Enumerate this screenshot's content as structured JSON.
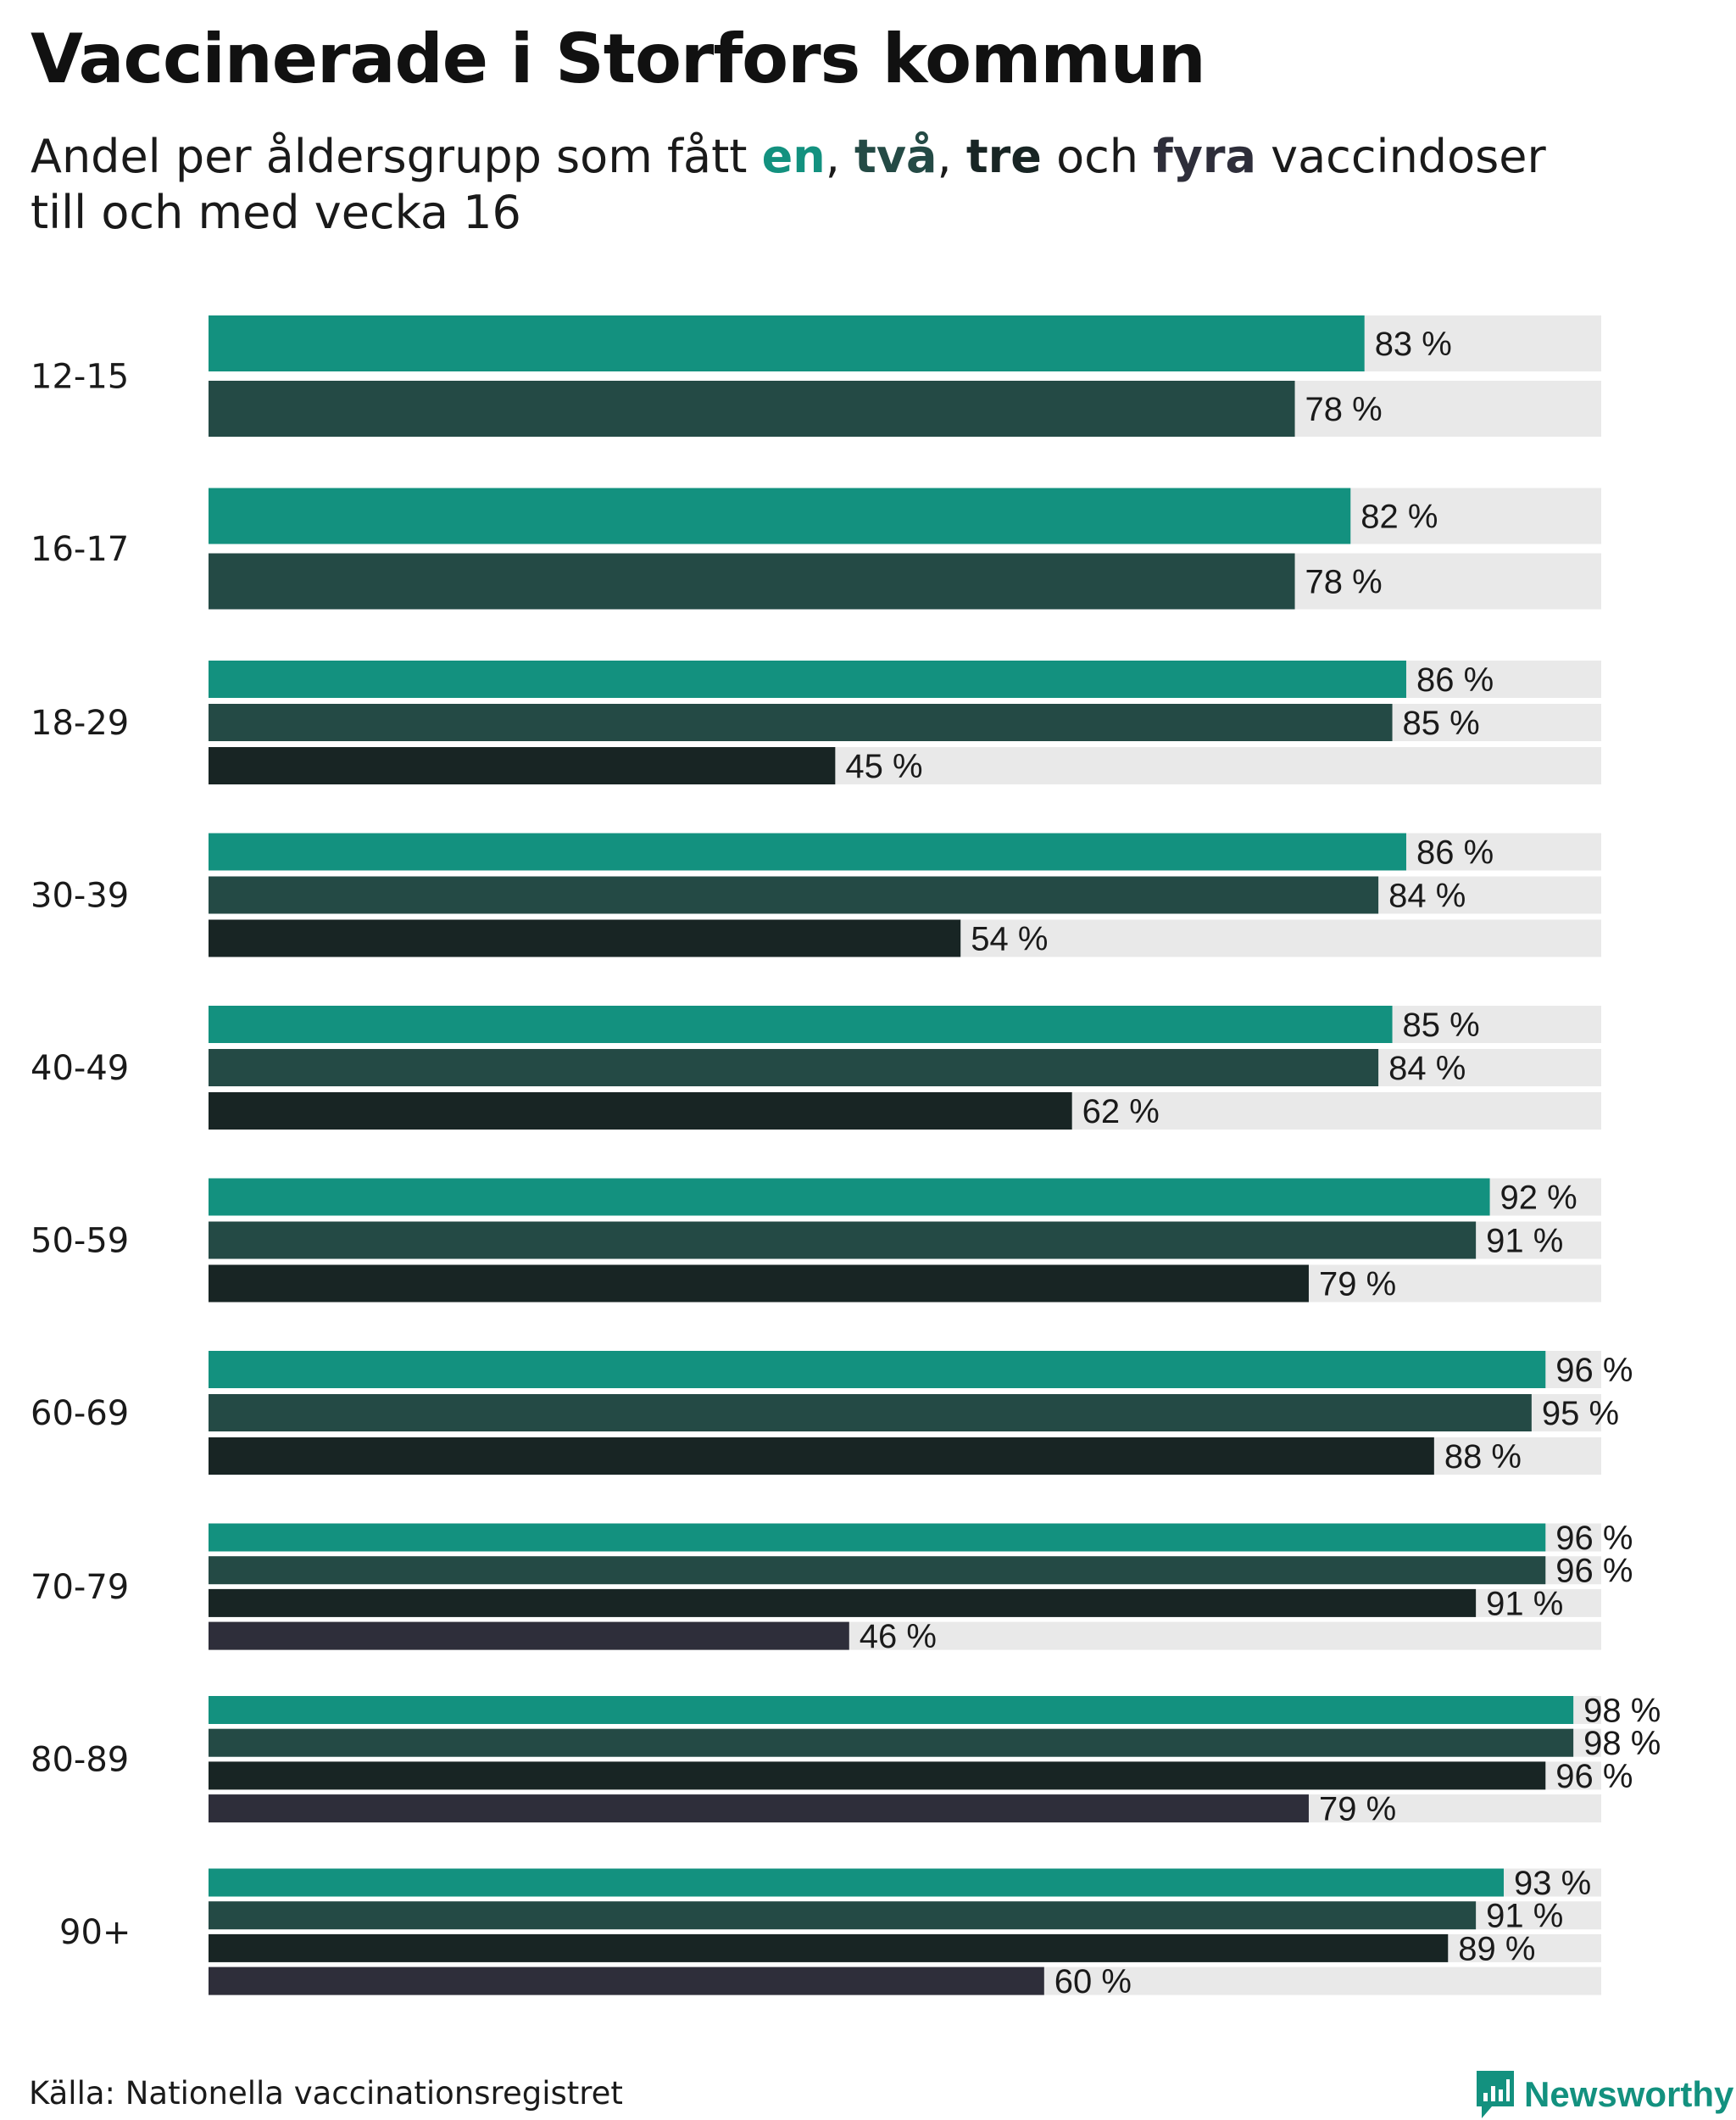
{
  "title": "Vaccinerade i Storfors kommun",
  "subtitle": {
    "prefix": "Andel per åldersgrupp som fått ",
    "k1": "en",
    "sep1": ", ",
    "k2": "två",
    "sep2": ", ",
    "k3": "tre",
    "sep3": " och ",
    "k4": "fyra",
    "suffix": " vaccindoser",
    "line2": "till och med vecka 16"
  },
  "colors": {
    "dose1": "#13917f",
    "dose2": "#244a45",
    "dose3": "#182524",
    "dose4": "#2e2e3a",
    "track": "#e9e9e9"
  },
  "source": "Källa: Nationella vaccinationsregistret",
  "brand": {
    "name": "Newsworthy",
    "icon": "newsworthy-logo-icon"
  },
  "chart_data": {
    "type": "bar",
    "orientation": "horizontal",
    "title": "Vaccinerade i Storfors kommun",
    "subtitle": "Andel per åldersgrupp som fått en, två, tre och fyra vaccindoser till och med vecka 16",
    "xlim": [
      0,
      100
    ],
    "unit": "%",
    "categories": [
      "12-15",
      "16-17",
      "18-29",
      "30-39",
      "40-49",
      "50-59",
      "60-69",
      "70-79",
      "80-89",
      "90+"
    ],
    "series": [
      {
        "name": "en",
        "values": [
          83,
          82,
          86,
          86,
          85,
          92,
          96,
          96,
          98,
          93
        ]
      },
      {
        "name": "två",
        "values": [
          78,
          78,
          85,
          84,
          84,
          91,
          95,
          96,
          98,
          91
        ]
      },
      {
        "name": "tre",
        "values": [
          null,
          null,
          45,
          54,
          62,
          79,
          88,
          91,
          96,
          89
        ]
      },
      {
        "name": "fyra",
        "values": [
          null,
          null,
          null,
          null,
          null,
          null,
          null,
          46,
          79,
          60
        ]
      }
    ]
  }
}
